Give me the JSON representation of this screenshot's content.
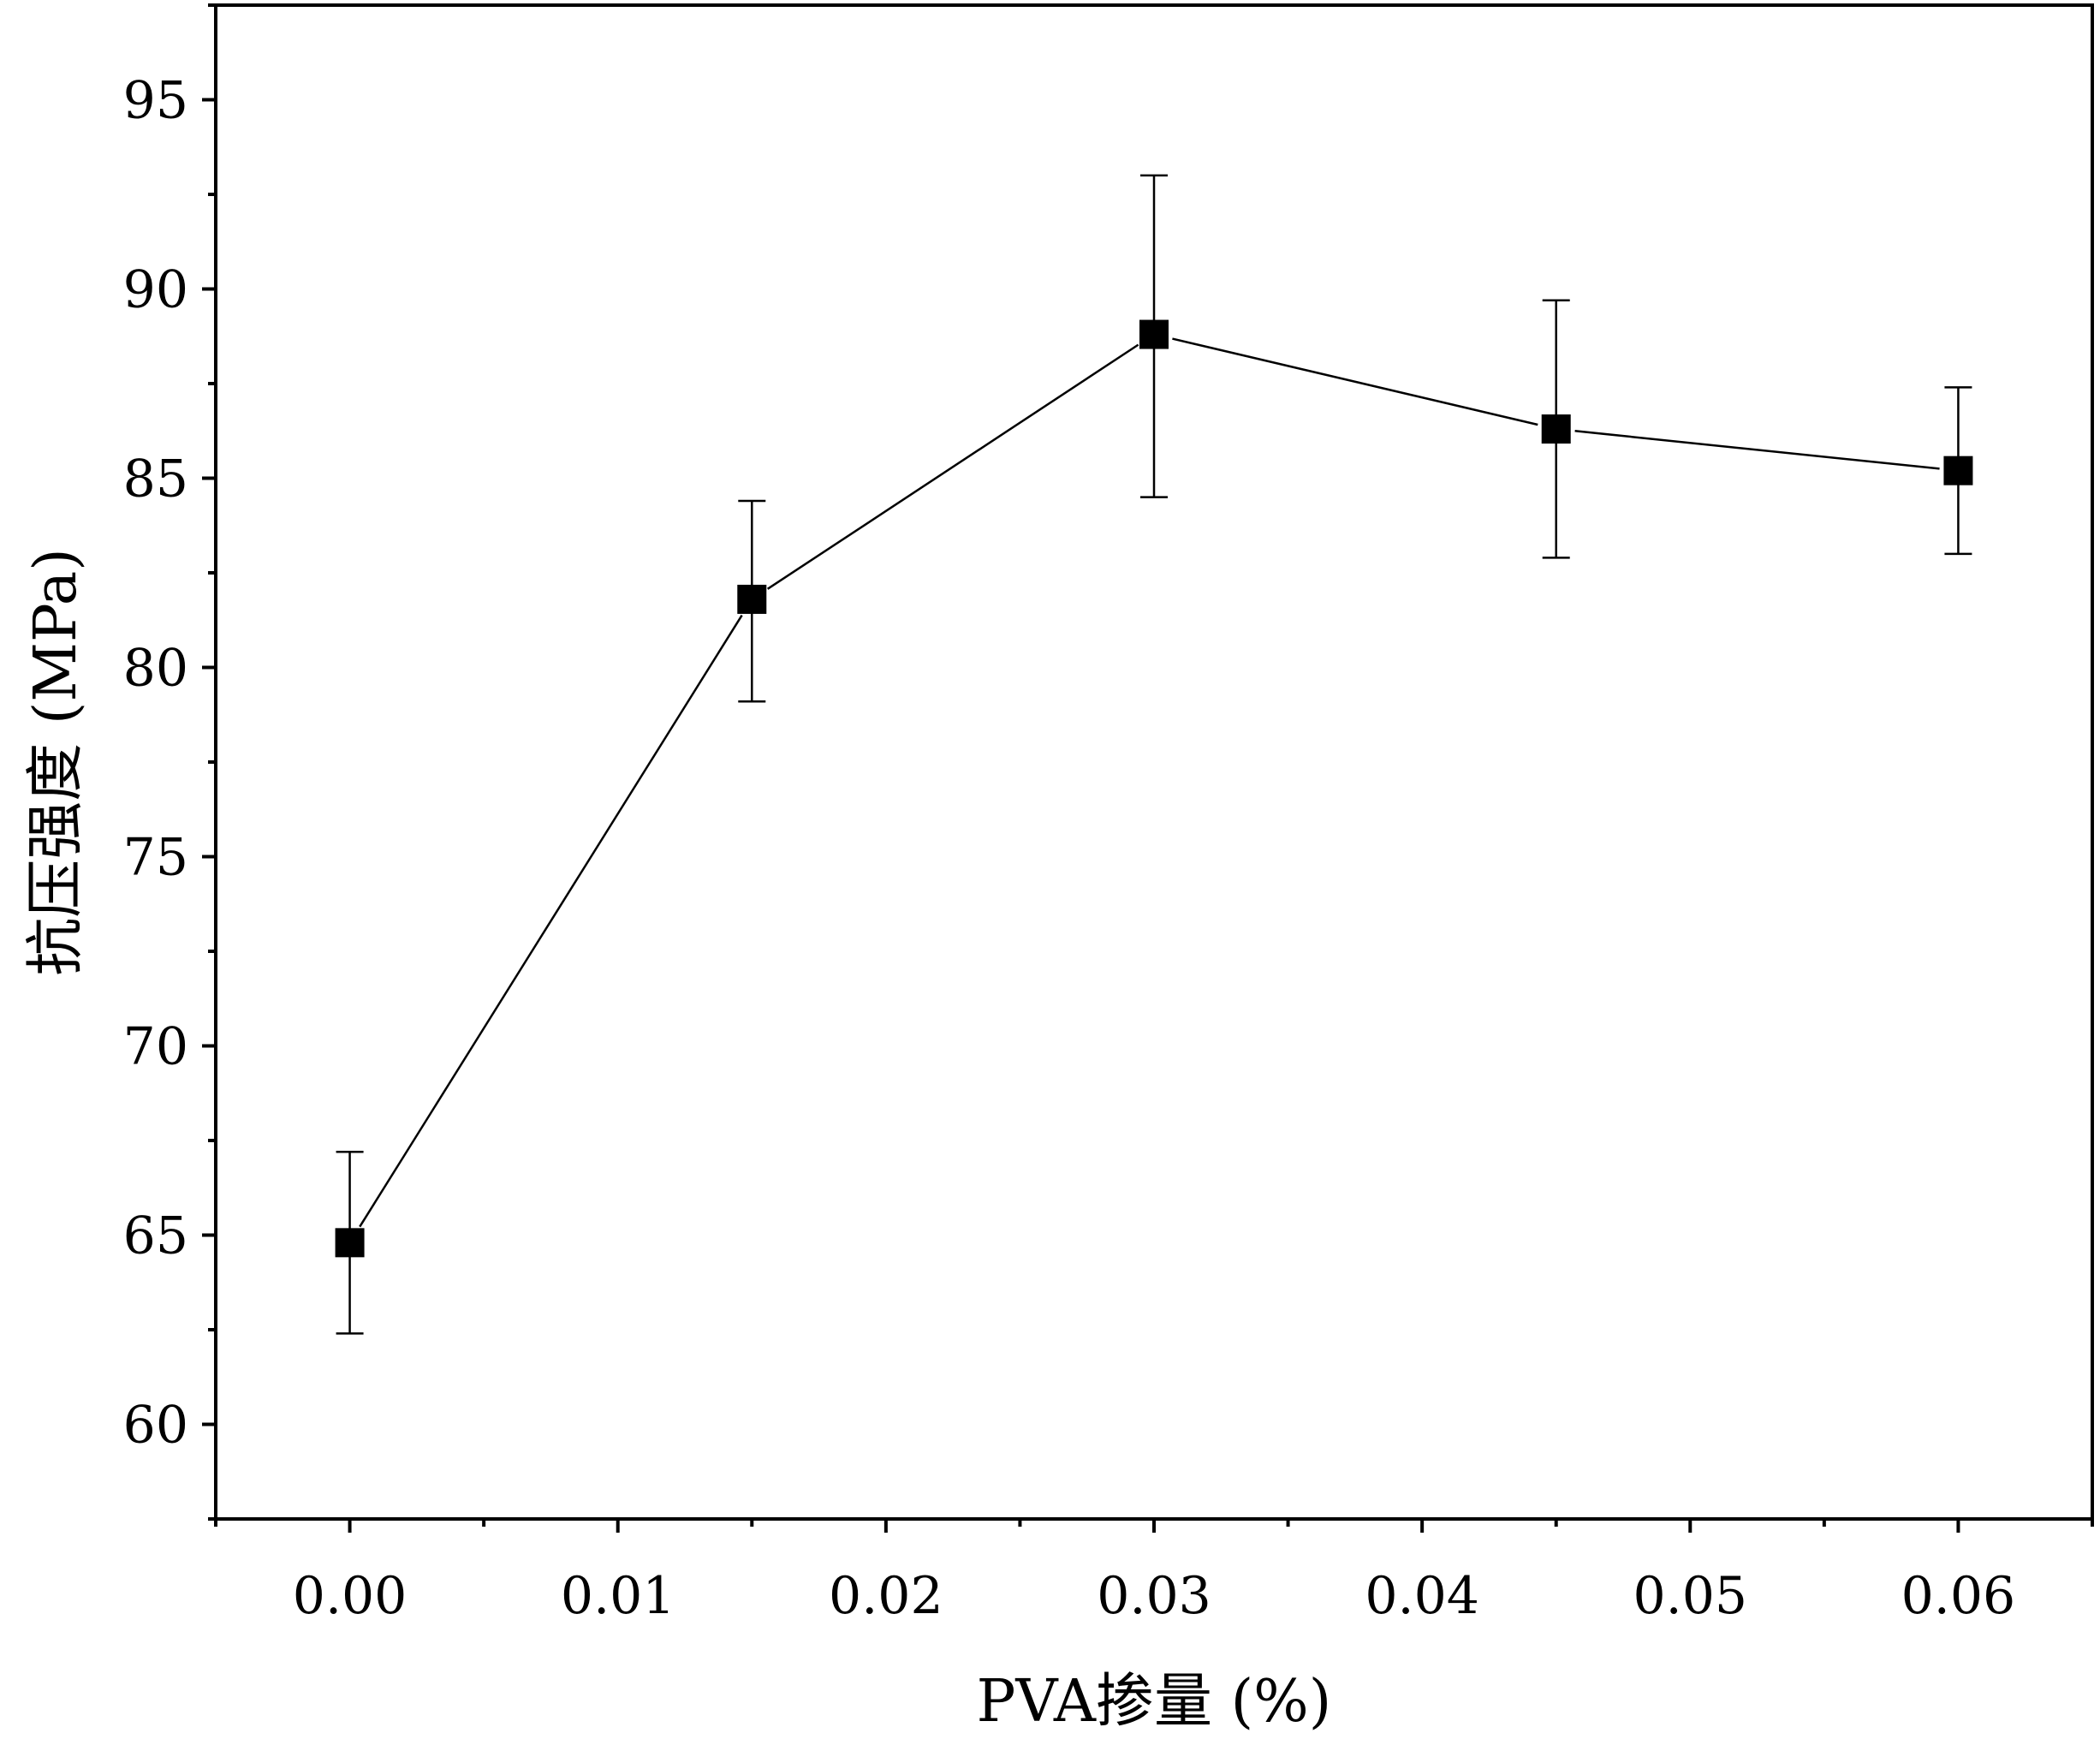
{
  "chart_data": {
    "type": "line",
    "title": "",
    "xlabel": "PVA掺量 (%)",
    "ylabel": "抗压强度 (MPa)",
    "xlim": [
      -0.005,
      0.065
    ],
    "ylim": [
      57.5,
      97.5
    ],
    "x_ticks": [
      0.0,
      0.01,
      0.02,
      0.03,
      0.04,
      0.05,
      0.06
    ],
    "x_tick_labels": [
      "0.00",
      "0.01",
      "0.02",
      "0.03",
      "0.04",
      "0.05",
      "0.06"
    ],
    "y_ticks": [
      60,
      65,
      70,
      75,
      80,
      85,
      90,
      95
    ],
    "y_tick_labels": [
      "60",
      "65",
      "70",
      "75",
      "80",
      "85",
      "90",
      "95"
    ],
    "grid": false,
    "legend": "none",
    "series": [
      {
        "marker": "square",
        "color": "#000000",
        "x": [
          0.0,
          0.015,
          0.03,
          0.045,
          0.06
        ],
        "y": [
          64.8,
          81.8,
          88.8,
          86.3,
          85.2
        ],
        "error_low": [
          62.4,
          79.1,
          84.5,
          82.9,
          83.0
        ],
        "error_high": [
          67.2,
          84.4,
          93.0,
          89.7,
          87.4
        ]
      }
    ]
  }
}
